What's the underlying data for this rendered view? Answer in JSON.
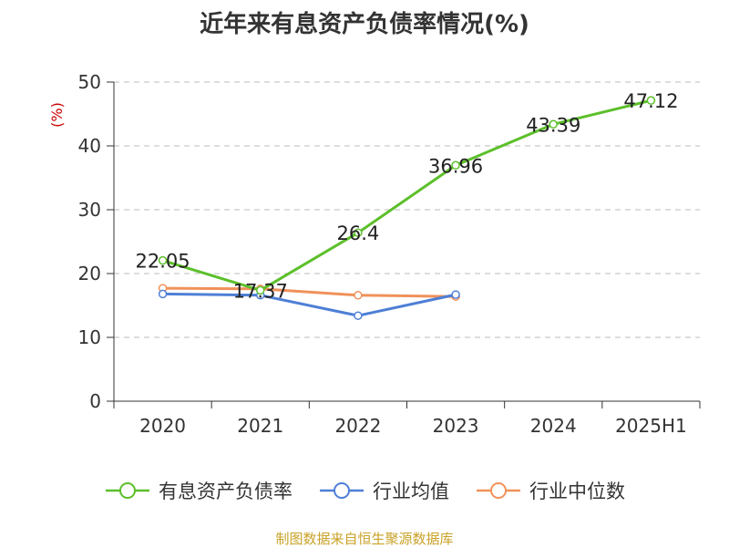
{
  "chart_data": {
    "type": "line",
    "title": "近年来有息资产负债率情况(%)",
    "unit_label": "(%)",
    "categories": [
      "2020",
      "2021",
      "2022",
      "2023",
      "2024",
      "2025H1"
    ],
    "ylim": [
      0,
      50
    ],
    "yticks": [
      0,
      10,
      20,
      30,
      40,
      50
    ],
    "grid": true,
    "legend_position": "bottom",
    "series": [
      {
        "name": "有息资产负债率",
        "color": "#5cbf2a",
        "values": [
          22.05,
          17.37,
          26.4,
          36.96,
          43.39,
          47.12
        ],
        "data_labels": [
          "22.05",
          "17.37",
          "26.4",
          "36.96",
          "43.39",
          "47.12"
        ]
      },
      {
        "name": "行业均值",
        "color": "#4e7fd6",
        "values": [
          16.8,
          16.6,
          13.4,
          16.7,
          null,
          null
        ]
      },
      {
        "name": "行业中位数",
        "color": "#f0915a",
        "values": [
          17.7,
          17.6,
          16.6,
          16.4,
          null,
          null
        ]
      }
    ]
  },
  "source": "制图数据来自恒生聚源数据库"
}
